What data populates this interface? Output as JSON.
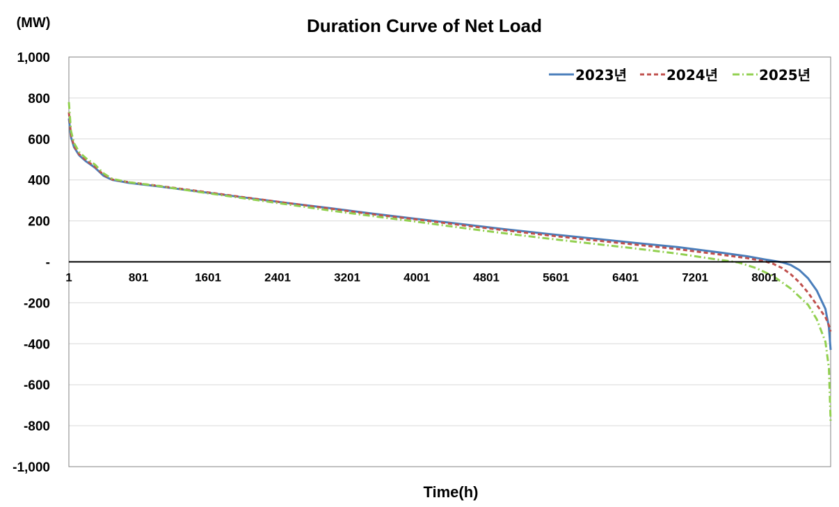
{
  "chart_data": {
    "type": "line",
    "title": "Duration Curve of Net Load",
    "unit_label": "(MW)",
    "xlabel": "Time(h)",
    "ylabel": "",
    "xlim": [
      1,
      8760
    ],
    "ylim": [
      -1000,
      1000
    ],
    "y_ticks": [
      {
        "value": 1000,
        "label": "1,000"
      },
      {
        "value": 800,
        "label": "800"
      },
      {
        "value": 600,
        "label": "600"
      },
      {
        "value": 400,
        "label": "400"
      },
      {
        "value": 200,
        "label": "200"
      },
      {
        "value": 0,
        "label": "-"
      },
      {
        "value": -200,
        "label": "-200"
      },
      {
        "value": -400,
        "label": "-400"
      },
      {
        "value": -600,
        "label": "-600"
      },
      {
        "value": -800,
        "label": "-800"
      },
      {
        "value": -1000,
        "label": "-1,000"
      }
    ],
    "x_ticks": [
      {
        "value": 1,
        "label": "1"
      },
      {
        "value": 801,
        "label": "801"
      },
      {
        "value": 1601,
        "label": "1601"
      },
      {
        "value": 2401,
        "label": "2401"
      },
      {
        "value": 3201,
        "label": "3201"
      },
      {
        "value": 4001,
        "label": "4001"
      },
      {
        "value": 4801,
        "label": "4801"
      },
      {
        "value": 5601,
        "label": "5601"
      },
      {
        "value": 6401,
        "label": "6401"
      },
      {
        "value": 7201,
        "label": "7201"
      },
      {
        "value": 8001,
        "label": "8001"
      }
    ],
    "grid": true,
    "legend_position": "top-right",
    "series": [
      {
        "name": "2023년",
        "color": "#4A7EBB",
        "dash": "solid",
        "points": [
          [
            1,
            700
          ],
          [
            25,
            610
          ],
          [
            60,
            560
          ],
          [
            120,
            520
          ],
          [
            200,
            490
          ],
          [
            300,
            460
          ],
          [
            400,
            420
          ],
          [
            500,
            400
          ],
          [
            700,
            385
          ],
          [
            1000,
            370
          ],
          [
            1500,
            343
          ],
          [
            2000,
            315
          ],
          [
            2500,
            288
          ],
          [
            3000,
            262
          ],
          [
            3500,
            235
          ],
          [
            4000,
            210
          ],
          [
            4500,
            185
          ],
          [
            5000,
            160
          ],
          [
            5500,
            137
          ],
          [
            6000,
            115
          ],
          [
            6500,
            93
          ],
          [
            7000,
            72
          ],
          [
            7500,
            45
          ],
          [
            7800,
            27
          ],
          [
            8000,
            12
          ],
          [
            8100,
            5
          ],
          [
            8200,
            -2
          ],
          [
            8300,
            -15
          ],
          [
            8400,
            -40
          ],
          [
            8500,
            -80
          ],
          [
            8600,
            -140
          ],
          [
            8700,
            -230
          ],
          [
            8740,
            -320
          ],
          [
            8760,
            -430
          ]
        ]
      },
      {
        "name": "2024년",
        "color": "#C0504D",
        "dash": "6,4",
        "points": [
          [
            1,
            730
          ],
          [
            25,
            620
          ],
          [
            60,
            565
          ],
          [
            120,
            525
          ],
          [
            200,
            495
          ],
          [
            300,
            465
          ],
          [
            400,
            425
          ],
          [
            500,
            402
          ],
          [
            700,
            388
          ],
          [
            1000,
            373
          ],
          [
            1500,
            345
          ],
          [
            2000,
            316
          ],
          [
            2500,
            288
          ],
          [
            3000,
            260
          ],
          [
            3500,
            232
          ],
          [
            4000,
            207
          ],
          [
            4500,
            180
          ],
          [
            5000,
            155
          ],
          [
            5500,
            130
          ],
          [
            6000,
            107
          ],
          [
            6500,
            85
          ],
          [
            7000,
            62
          ],
          [
            7500,
            35
          ],
          [
            7800,
            18
          ],
          [
            8000,
            3
          ],
          [
            8100,
            -10
          ],
          [
            8200,
            -30
          ],
          [
            8300,
            -60
          ],
          [
            8400,
            -100
          ],
          [
            8500,
            -150
          ],
          [
            8600,
            -210
          ],
          [
            8700,
            -270
          ],
          [
            8740,
            -310
          ],
          [
            8760,
            -340
          ]
        ]
      },
      {
        "name": "2025년",
        "color": "#92D050",
        "dash": "10,4,2,4",
        "points": [
          [
            1,
            780
          ],
          [
            25,
            640
          ],
          [
            60,
            580
          ],
          [
            120,
            535
          ],
          [
            200,
            505
          ],
          [
            300,
            475
          ],
          [
            400,
            432
          ],
          [
            500,
            405
          ],
          [
            700,
            388
          ],
          [
            1000,
            372
          ],
          [
            1500,
            341
          ],
          [
            2000,
            311
          ],
          [
            2500,
            281
          ],
          [
            3000,
            251
          ],
          [
            3500,
            223
          ],
          [
            4000,
            196
          ],
          [
            4500,
            167
          ],
          [
            5000,
            140
          ],
          [
            5500,
            114
          ],
          [
            6000,
            90
          ],
          [
            6500,
            66
          ],
          [
            7000,
            40
          ],
          [
            7400,
            15
          ],
          [
            7700,
            -3
          ],
          [
            7900,
            -30
          ],
          [
            8100,
            -70
          ],
          [
            8300,
            -130
          ],
          [
            8500,
            -210
          ],
          [
            8600,
            -280
          ],
          [
            8700,
            -390
          ],
          [
            8740,
            -520
          ],
          [
            8760,
            -780
          ]
        ]
      }
    ]
  }
}
